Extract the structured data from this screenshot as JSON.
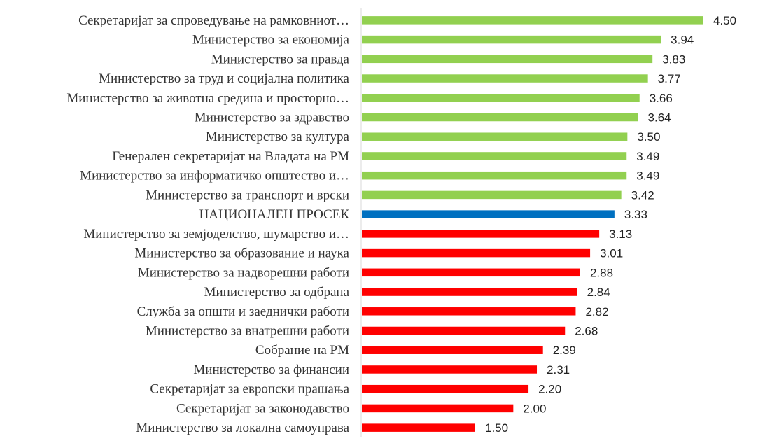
{
  "chart_data": {
    "type": "bar",
    "orientation": "horizontal",
    "categories": [
      "Секретаријат за спроведување на рамковниот…",
      "Министерство за економија",
      "Министерство за правда",
      "Министерство за труд и социјална политика",
      "Министерство за животна средина и просторно…",
      "Министерство за здравство",
      "Министерство за култура",
      "Генерален секретаријат на Владата на РМ",
      "Министерство за информатичко општество и…",
      "Министерство за транспорт и врски",
      "НАЦИОНАЛЕН ПРОСЕК",
      "Министерство за земјоделство, шумарство и…",
      "Министерство за образование и наука",
      "Министерство за надворешни работи",
      "Министерство за одбрана",
      "Служба за општи и заеднички работи",
      "Министерство за внатрешни работи",
      "Собрание на РМ",
      "Министерство за финансии",
      "Секретаријат за европски прашања",
      "Секретаријат за законодавство",
      "Министерство за локална самоуправа"
    ],
    "values": [
      4.5,
      3.94,
      3.83,
      3.77,
      3.66,
      3.64,
      3.5,
      3.49,
      3.49,
      3.42,
      3.33,
      3.13,
      3.01,
      2.88,
      2.84,
      2.82,
      2.68,
      2.39,
      2.31,
      2.2,
      2.0,
      1.5
    ],
    "value_labels": [
      "4.50",
      "3.94",
      "3.83",
      "3.77",
      "3.66",
      "3.64",
      "3.50",
      "3.49",
      "3.49",
      "3.42",
      "3.33",
      "3.13",
      "3.01",
      "2.88",
      "2.84",
      "2.82",
      "2.68",
      "2.39",
      "2.31",
      "2.20",
      "2.00",
      "1.50"
    ],
    "xlim": [
      0,
      4.5
    ],
    "grid": false,
    "legend": "none",
    "colors": {
      "above_average": "#92d050",
      "average": "#0070c0",
      "below_average": "#ff0000",
      "axis": "#d9d9d9"
    },
    "average_label": "НАЦИОНАЛЕН ПРОСЕК"
  }
}
